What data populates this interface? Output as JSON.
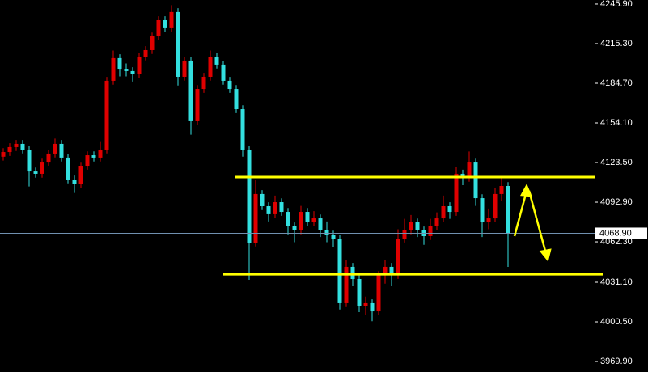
{
  "chart_data": {
    "type": "candlestick",
    "open": [
      4128.0,
      4131.6,
      4135.4,
      4137.9,
      4133.5,
      4116.6,
      4114.8,
      4124.1,
      4130.4,
      4137.9,
      4127.3,
      4110.4,
      4106.7,
      4121.0,
      4129.1,
      4127.3,
      4133.5,
      4186.6,
      4204.1,
      4195.9,
      4194.1,
      4191.6,
      4205.3,
      4210.3,
      4220.9,
      4233.4,
      4227.2,
      4239.7,
      4189.7,
      4202.2,
      4155.4,
      4180.3,
      4189.7,
      4205.3,
      4199.1,
      4186.6,
      4180.3,
      4164.7,
      4133.5,
      4061.7,
      4099.2,
      4089.8,
      4083.6,
      4092.9,
      4085.4,
      4074.2,
      4071.1,
      4085.4,
      4077.3,
      4080.4,
      4071.1,
      4067.9,
      4064.8,
      4014.9,
      4043.0,
      4033.6,
      4013.0,
      4014.9,
      4008.6,
      4036.7,
      4043.0,
      4036.7,
      4064.8,
      4071.1,
      4077.3,
      4071.1,
      4066.7,
      4074.2,
      4080.4,
      4089.8,
      4085.4,
      4114.8,
      4111.7,
      4124.1,
      4096.0,
      4077.3,
      4080.4,
      4099.2,
      4105.4
    ],
    "high": [
      4134.6,
      4138.4,
      4140.9,
      4140.9,
      4136.5,
      4119.6,
      4127.1,
      4133.4,
      4142.0,
      4140.9,
      4130.3,
      4113.4,
      4124.0,
      4132.1,
      4132.1,
      4140.0,
      4189.6,
      4210.0,
      4207.1,
      4200.0,
      4197.1,
      4208.3,
      4213.3,
      4223.9,
      4236.4,
      4236.4,
      4245.0,
      4242.7,
      4205.2,
      4205.2,
      4183.3,
      4192.7,
      4210.0,
      4208.3,
      4202.1,
      4189.6,
      4183.3,
      4167.7,
      4136.5,
      4110.0,
      4102.2,
      4092.8,
      4098.0,
      4095.9,
      4088.4,
      4077.2,
      4090.0,
      4088.4,
      4086.0,
      4083.4,
      4078.0,
      4070.9,
      4067.8,
      4048.0,
      4046.0,
      4036.6,
      4020.0,
      4017.9,
      4039.7,
      4048.0,
      4046.0,
      4072.0,
      4080.0,
      4083.0,
      4080.3,
      4074.1,
      4080.0,
      4085.0,
      4098.0,
      4092.8,
      4120.0,
      4118.0,
      4132.0,
      4127.1,
      4099.0,
      4088.0,
      4104.0,
      4112.0,
      4108.4
    ],
    "low": [
      4125.0,
      4128.6,
      4132.4,
      4130.5,
      4105.0,
      4111.8,
      4111.8,
      4121.1,
      4127.4,
      4124.3,
      4107.4,
      4100.0,
      4103.7,
      4118.0,
      4124.3,
      4124.3,
      4130.5,
      4183.6,
      4190.0,
      4190.0,
      4186.0,
      4188.6,
      4202.3,
      4207.3,
      4217.9,
      4224.2,
      4224.2,
      4183.0,
      4186.7,
      4145.0,
      4152.4,
      4177.3,
      4186.7,
      4196.1,
      4183.6,
      4177.3,
      4161.7,
      4128.0,
      4033.0,
      4058.7,
      4086.8,
      4078.0,
      4080.6,
      4082.4,
      4068.0,
      4062.0,
      4068.1,
      4074.3,
      4074.3,
      4066.0,
      4062.0,
      4058.0,
      4010.0,
      4011.9,
      4028.0,
      4008.0,
      4006.0,
      4001.0,
      4005.6,
      4030.0,
      4028.0,
      4033.7,
      4061.8,
      4068.1,
      4066.0,
      4060.0,
      4063.7,
      4071.2,
      4077.4,
      4080.0,
      4082.4,
      4106.0,
      4108.7,
      4090.0,
      4066.0,
      4072.0,
      4077.4,
      4094.0,
      4043.0
    ],
    "close": [
      4131.6,
      4135.4,
      4137.9,
      4133.5,
      4116.6,
      4114.8,
      4124.1,
      4130.4,
      4137.9,
      4127.3,
      4110.4,
      4106.7,
      4121.0,
      4129.1,
      4127.3,
      4133.5,
      4186.6,
      4204.1,
      4195.9,
      4194.1,
      4191.6,
      4205.3,
      4210.3,
      4220.9,
      4233.4,
      4227.2,
      4239.7,
      4189.7,
      4202.2,
      4155.4,
      4180.3,
      4189.7,
      4205.3,
      4199.1,
      4186.6,
      4180.3,
      4164.7,
      4133.5,
      4061.7,
      4099.2,
      4089.8,
      4083.6,
      4092.9,
      4085.4,
      4074.2,
      4071.1,
      4085.4,
      4077.3,
      4080.4,
      4071.1,
      4067.9,
      4064.8,
      4014.9,
      4043.0,
      4033.6,
      4013.0,
      4014.9,
      4008.6,
      4036.7,
      4043.0,
      4036.7,
      4064.8,
      4071.1,
      4077.3,
      4071.1,
      4066.7,
      4074.2,
      4080.4,
      4089.8,
      4085.4,
      4114.8,
      4111.7,
      4124.1,
      4096.0,
      4077.3,
      4080.4,
      4099.2,
      4105.4,
      4068.9
    ],
    "up_color": "#e00000",
    "down_color": "#33e0e0",
    "ylim": [
      3961.8,
      4249.0
    ],
    "yticks": [
      {
        "value": 4245.9,
        "label": "4245.90"
      },
      {
        "value": 4215.3,
        "label": "4215.30"
      },
      {
        "value": 4184.7,
        "label": "4184.70"
      },
      {
        "value": 4154.1,
        "label": "4154.10"
      },
      {
        "value": 4123.5,
        "label": "4123.50"
      },
      {
        "value": 4092.9,
        "label": "4092.90"
      },
      {
        "value": 4062.3,
        "label": "4062.30"
      },
      {
        "value": 4031.1,
        "label": "4031.10"
      },
      {
        "value": 4000.5,
        "label": "4000.50"
      },
      {
        "value": 3969.9,
        "label": "3969.90"
      }
    ],
    "last_price": {
      "value": 4068.9,
      "label": "4068.90"
    },
    "levels": [
      4112.3,
      4037.3
    ],
    "level_color": "#ffff00"
  }
}
